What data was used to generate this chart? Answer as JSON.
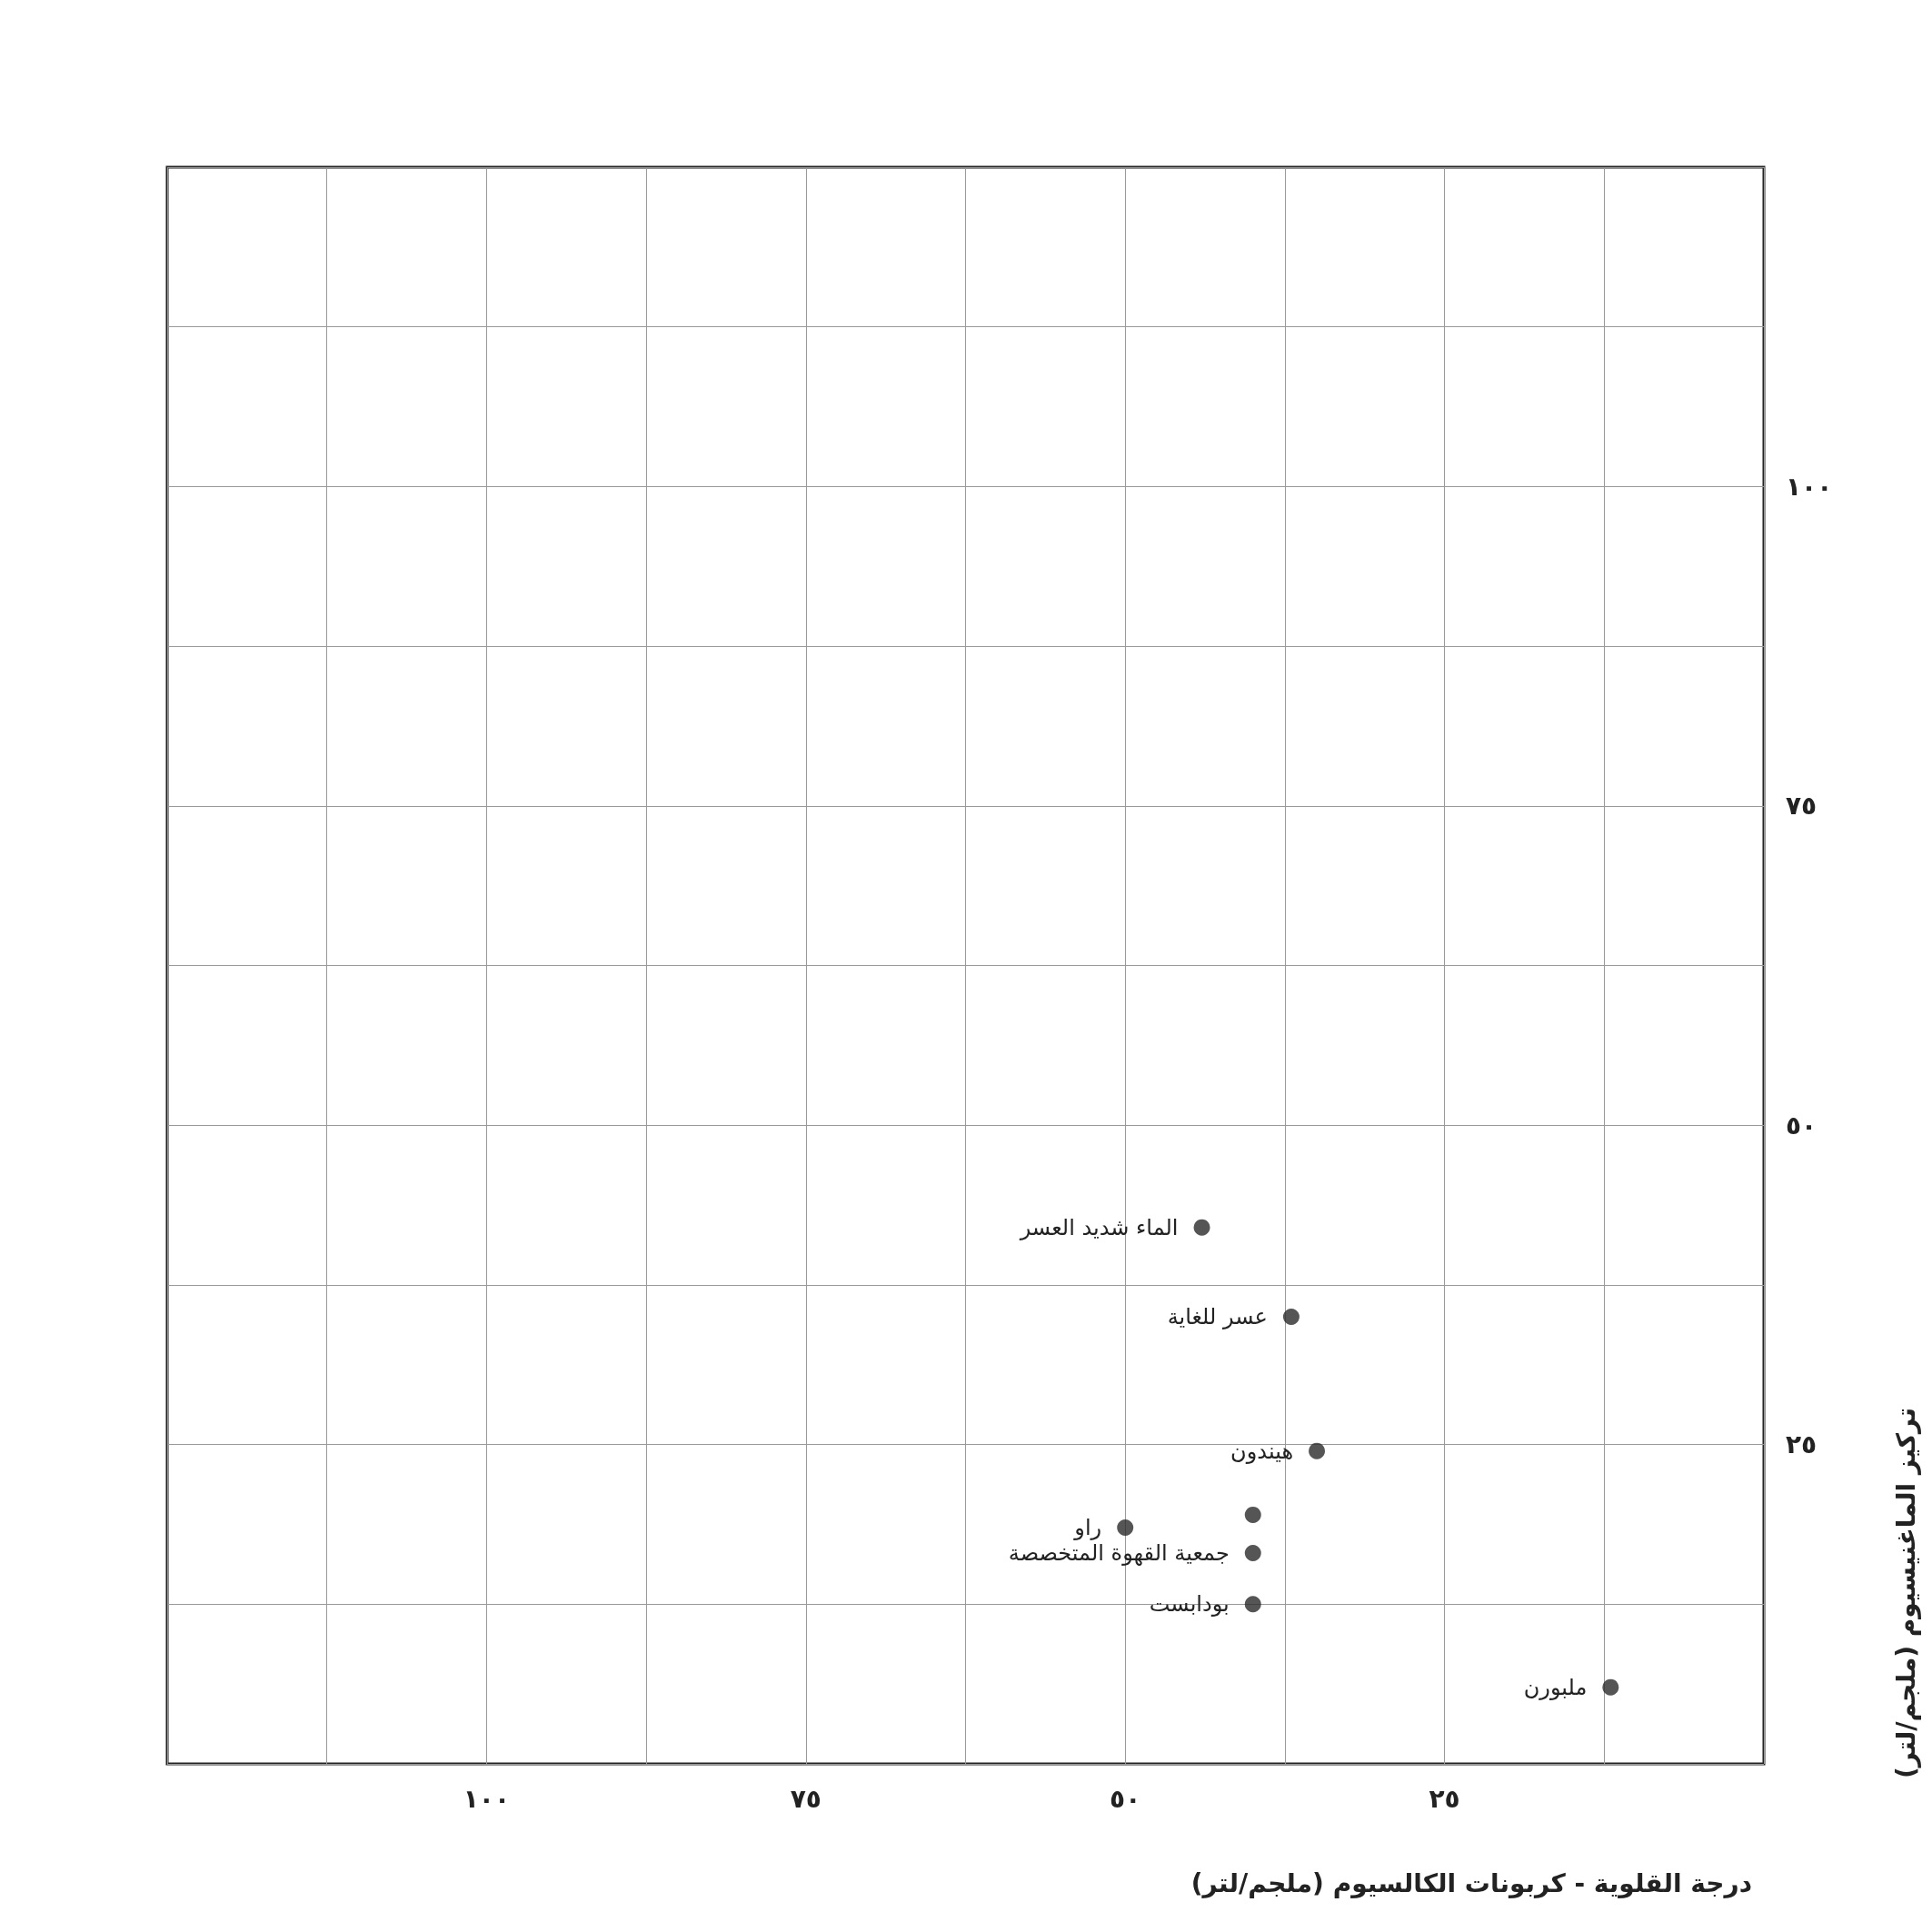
{
  "chart_data": {
    "type": "scatter",
    "xlabel": "درجة القلوية - كربونات الكالسيوم (ملجم/لتر)",
    "ylabel": "تركيز الماغنيسيوم (ملجم/لتر)",
    "x": [
      44,
      37,
      35,
      40,
      50,
      40,
      40,
      12
    ],
    "values": [
      42,
      35,
      24.5,
      19.5,
      18.5,
      16.5,
      12.5,
      6
    ],
    "color": "#2a2a2a",
    "marker": "circle",
    "annotations": [
      {
        "text": "الماء شديد العسر",
        "x": 44,
        "y": 42
      },
      {
        "text": "عسر للغاية",
        "x": 37,
        "y": 35
      },
      {
        "text": "هيندون",
        "x": 35,
        "y": 24.5
      },
      {
        "text": "راو",
        "x": 50,
        "y": 18.5
      },
      {
        "text": "جمعية القهوة المتخصصة",
        "x": 40,
        "y": 16.5
      },
      {
        "text": "بودابست",
        "x": 40,
        "y": 12.5
      },
      {
        "text": "ملبورن",
        "x": 12,
        "y": 6
      }
    ],
    "xlim": [
      125,
      0
    ],
    "ylim": [
      0,
      125
    ],
    "xticks": [
      {
        "value": 0,
        "label": null
      },
      {
        "value": 12.5,
        "label": null
      },
      {
        "value": 25,
        "label": "٢٥"
      },
      {
        "value": 37.5,
        "label": null
      },
      {
        "value": 50,
        "label": "٥٠"
      },
      {
        "value": 62.5,
        "label": null
      },
      {
        "value": 75,
        "label": "٧٥"
      },
      {
        "value": 87.5,
        "label": null
      },
      {
        "value": 100,
        "label": "١٠٠"
      },
      {
        "value": 112.5,
        "label": null
      },
      {
        "value": 125,
        "label": null
      }
    ],
    "yticks": [
      {
        "value": 0,
        "label": null
      },
      {
        "value": 12.5,
        "label": null
      },
      {
        "value": 25,
        "label": "٢٥"
      },
      {
        "value": 37.5,
        "label": null
      },
      {
        "value": 50,
        "label": "٥٠"
      },
      {
        "value": 62.5,
        "label": null
      },
      {
        "value": 75,
        "label": "٧٥"
      },
      {
        "value": 87.5,
        "label": null
      },
      {
        "value": 100,
        "label": "١٠٠"
      },
      {
        "value": 112.5,
        "label": null
      },
      {
        "value": 125,
        "label": null
      }
    ],
    "grid": true
  }
}
